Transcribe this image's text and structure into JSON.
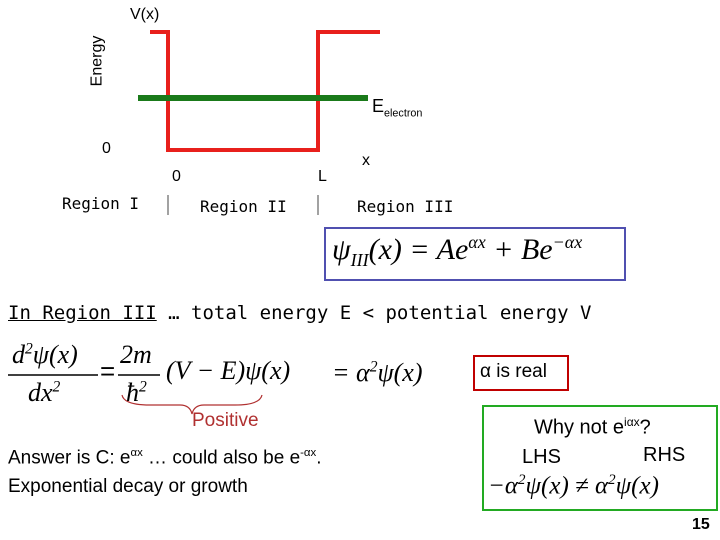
{
  "diagram": {
    "y_axis_label": "V(x)",
    "energy_label": "Energy",
    "electron_energy": {
      "symbol": "E",
      "subscript": "electron"
    },
    "zero_energy": "0",
    "x_zero": "0",
    "x_L": "L",
    "x_axis_label": "x",
    "regions": [
      "Region I",
      "Region II",
      "Region III"
    ]
  },
  "solution_box": {
    "psi": "ψ",
    "subscript": "III",
    "middle": "(x) = Ae",
    "exp1": "αx",
    "plus": " + Be",
    "exp2": "−αx"
  },
  "heading": {
    "underlined": "In Region III",
    "rest": " … total energy E < potential energy V"
  },
  "schrodinger": {
    "num_d": "d",
    "num_sup": "2",
    "num_rest": "ψ(x)",
    "den": "dx",
    "den_sup": "2",
    "coef_num": "2m",
    "coef_den": "ħ",
    "coef_den_sup": "2",
    "factor": "(V − E)ψ(x)",
    "rhs_eq": "= α",
    "rhs_sup": "2",
    "rhs_rest": "ψ(x)"
  },
  "alpha_box": "α is real",
  "positive": "Positive",
  "answer": {
    "prefix": "Answer is C: e",
    "sup1": "αx",
    "middle": " … could also be e",
    "sup2": "-αx",
    "suffix": "."
  },
  "answer_line2": "Exponential decay or growth",
  "why_not": {
    "text": "Why not e",
    "sup": "iαx",
    "end": "?",
    "lhs": "LHS",
    "rhs": "RHS",
    "ineq_left": "−α",
    "ineq_left_sup": "2",
    "ineq_middle": "ψ(x) ≠ α",
    "ineq_right_sup": "2",
    "ineq_right": "ψ(x)"
  },
  "page_number": "15"
}
